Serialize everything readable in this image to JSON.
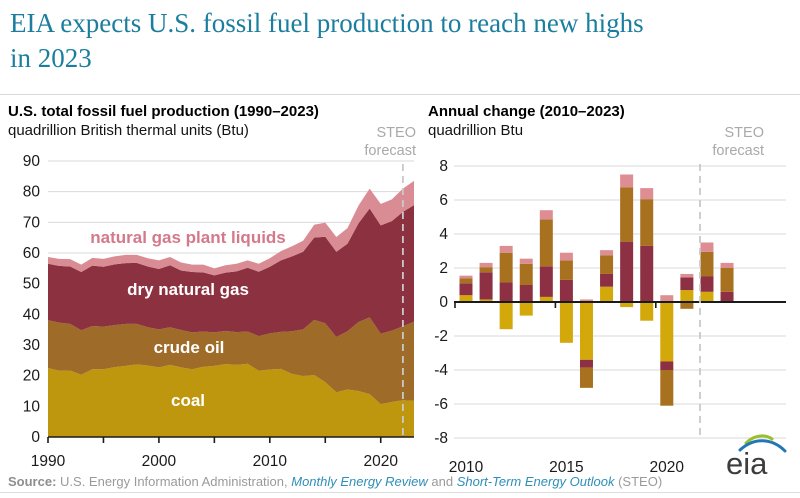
{
  "header": {
    "title_lines": [
      "EIA expects U.S. fossil fuel production to reach new highs",
      "in 2023"
    ],
    "title_color": "#1B7E9F"
  },
  "colors": {
    "coal_area": "#BE970E",
    "crude_area": "#9E6B28",
    "gas_area": "#8C3140",
    "ngpl_area": "#D98C94",
    "coal_bar": "#D2A80A",
    "crude_bar": "#A87120",
    "gas_bar": "#8E3044",
    "ngpl_bar": "#DE8D93",
    "gridline": "#DADADA",
    "axis_text": "#1A1A1A",
    "forecast_dash": "#C9C9C9",
    "steo_gray": "#A9A9A9"
  },
  "chart_data": [
    {
      "type": "area",
      "title": "U.S. total fossil fuel production (1990–2023)",
      "subtitle": "quadrillion British thermal units (Btu)",
      "forecast_label": [
        "STEO",
        "forecast"
      ],
      "forecast_start_year": 2022,
      "x_range": [
        1990,
        2023
      ],
      "ylim": [
        0,
        90
      ],
      "y_tick_step": 10,
      "x_tick_labels": [
        1990,
        2000,
        2010,
        2020
      ],
      "x_minor_ticks": [
        1995,
        2005,
        2015
      ],
      "legend_position": "labels-on-areas",
      "grid": true,
      "years": [
        1990,
        1991,
        1992,
        1993,
        1994,
        1995,
        1996,
        1997,
        1998,
        1999,
        2000,
        2001,
        2002,
        2003,
        2004,
        2005,
        2006,
        2007,
        2008,
        2009,
        2010,
        2011,
        2012,
        2013,
        2014,
        2015,
        2016,
        2017,
        2018,
        2019,
        2020,
        2021,
        2022,
        2023
      ],
      "stack_order": "bottom-to-top",
      "series": [
        {
          "name": "coal",
          "color_key": "coal_area",
          "values": [
            22.5,
            21.6,
            21.7,
            20.3,
            22.1,
            22.1,
            22.8,
            23.2,
            23.7,
            23.3,
            22.7,
            23.5,
            22.7,
            22.1,
            22.9,
            23.2,
            23.8,
            23.5,
            23.9,
            21.6,
            22.0,
            22.2,
            20.6,
            19.9,
            20.2,
            17.9,
            14.6,
            15.5,
            15.0,
            14.0,
            10.7,
            11.4,
            12.0,
            11.8
          ]
        },
        {
          "name": "crude oil",
          "color_key": "crude_area",
          "values": [
            15.6,
            15.7,
            15.2,
            14.5,
            14.1,
            13.9,
            13.7,
            13.7,
            13.2,
            12.5,
            12.4,
            12.3,
            12.2,
            12.0,
            11.5,
            10.9,
            10.8,
            10.7,
            10.5,
            11.3,
            11.8,
            12.1,
            13.9,
            15.2,
            18.0,
            19.2,
            18.0,
            19.0,
            22.5,
            25.0,
            23.0,
            23.3,
            24.1,
            25.8
          ]
        },
        {
          "name": "dry natural gas",
          "color_key": "gas_area",
          "values": [
            18.4,
            18.5,
            18.7,
            19.0,
            19.7,
            19.5,
            19.8,
            19.8,
            19.9,
            19.8,
            19.7,
            20.2,
            19.4,
            19.7,
            19.3,
            18.6,
            19.0,
            19.8,
            20.8,
            21.0,
            21.7,
            23.3,
            24.4,
            25.3,
            26.8,
            28.2,
            27.8,
            28.5,
            32.2,
            35.5,
            35.3,
            35.7,
            37.3,
            38.0
          ]
        },
        {
          "name": "natural gas plant liquids",
          "color_key": "ngpl_area",
          "values": [
            2.2,
            2.3,
            2.4,
            2.4,
            2.5,
            2.6,
            2.6,
            2.7,
            2.6,
            2.7,
            2.8,
            2.7,
            2.6,
            2.4,
            2.5,
            2.3,
            2.4,
            2.5,
            2.4,
            2.6,
            2.8,
            3.0,
            3.3,
            3.6,
            4.2,
            4.6,
            4.8,
            5.1,
            5.8,
            6.5,
            7.0,
            7.1,
            7.6,
            7.9
          ]
        }
      ],
      "area_labels": [
        {
          "text": "natural gas plant liquids",
          "color": "#D4798A"
        },
        {
          "text": "dry natural gas",
          "color": "#FFFFFF"
        },
        {
          "text": "crude oil",
          "color": "#FFFFFF"
        },
        {
          "text": "coal",
          "color": "#FFFFFF"
        }
      ]
    },
    {
      "type": "bar",
      "title": "Annual change (2010–2023)",
      "subtitle": "quadrillion Btu",
      "forecast_label": [
        "STEO",
        "forecast"
      ],
      "forecast_start_year": 2022,
      "ylim": [
        -8,
        8
      ],
      "y_tick_step": 2,
      "y_tick_labels": [
        8,
        6,
        4,
        2,
        0,
        -2,
        -4,
        -6,
        -8
      ],
      "x_tick_labels": [
        2010,
        2015,
        2020
      ],
      "grid": true,
      "years": [
        2010,
        2011,
        2012,
        2013,
        2014,
        2015,
        2016,
        2017,
        2018,
        2019,
        2020,
        2021,
        2022,
        2023
      ],
      "stack_order": "positive-up-negative-down",
      "series": [
        {
          "name": "coal",
          "color_key": "coal_bar",
          "values": [
            0.4,
            0.15,
            -1.6,
            -0.8,
            0.3,
            -2.4,
            -3.4,
            0.9,
            -0.3,
            -1.1,
            -3.5,
            0.7,
            0.6,
            0
          ]
        },
        {
          "name": "dry natural gas",
          "color_key": "gas_bar",
          "values": [
            0.7,
            1.6,
            1.15,
            1.0,
            1.8,
            1.3,
            -0.45,
            0.75,
            3.55,
            3.3,
            -0.5,
            0.75,
            0.9,
            0.6
          ]
        },
        {
          "name": "crude oil",
          "color_key": "crude_bar",
          "values": [
            0.3,
            0.3,
            1.75,
            1.25,
            2.75,
            1.15,
            -1.2,
            1.1,
            3.2,
            2.75,
            -2.1,
            -0.4,
            1.45,
            1.4
          ]
        },
        {
          "name": "natural gas plant liquids",
          "color_key": "ngpl_bar",
          "values": [
            0.15,
            0.25,
            0.4,
            0.3,
            0.55,
            0.45,
            0.15,
            0.3,
            0.75,
            0.65,
            0.4,
            0.2,
            0.55,
            0.3
          ]
        }
      ]
    }
  ],
  "source": {
    "prefix": "Source:",
    "text1": " U.S. Energy Information Administration, ",
    "link1": "Monthly Energy Review",
    "mid": " and ",
    "link2": "Short-Term Energy Outlook",
    "suffix": " (STEO)"
  },
  "logo": {
    "text": "eia"
  }
}
